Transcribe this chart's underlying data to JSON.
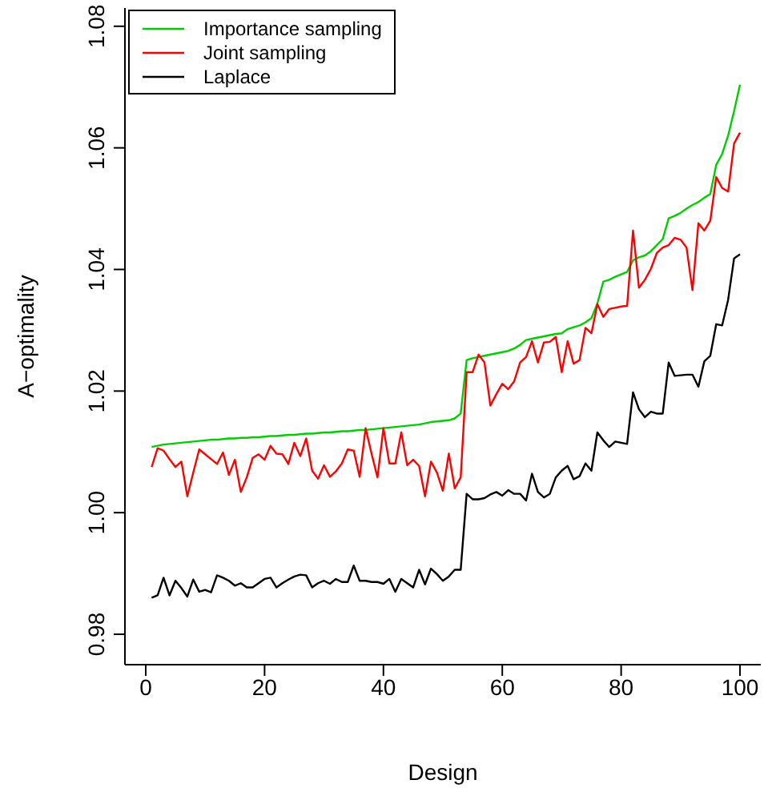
{
  "chart_data": {
    "type": "line",
    "xlabel": "Design",
    "ylabel": "A−optimality",
    "x": [
      1,
      2,
      3,
      4,
      5,
      6,
      7,
      8,
      9,
      10,
      11,
      12,
      13,
      14,
      15,
      16,
      17,
      18,
      19,
      20,
      21,
      22,
      23,
      24,
      25,
      26,
      27,
      28,
      29,
      30,
      31,
      32,
      33,
      34,
      35,
      36,
      37,
      38,
      39,
      40,
      41,
      42,
      43,
      44,
      45,
      46,
      47,
      48,
      49,
      50,
      51,
      52,
      53,
      54,
      55,
      56,
      57,
      58,
      59,
      60,
      61,
      62,
      63,
      64,
      65,
      66,
      67,
      68,
      69,
      70,
      71,
      72,
      73,
      74,
      75,
      76,
      77,
      78,
      79,
      80,
      81,
      82,
      83,
      84,
      85,
      86,
      87,
      88,
      89,
      90,
      91,
      92,
      93,
      94,
      95,
      96,
      97,
      98,
      99,
      100
    ],
    "series": [
      {
        "name": "Importance sampling",
        "color": "#00cd00",
        "values": [
          1.0108,
          1.011,
          1.0112,
          1.0113,
          1.0114,
          1.0115,
          1.0116,
          1.0117,
          1.0118,
          1.0119,
          1.012,
          1.012,
          1.0121,
          1.0122,
          1.0122,
          1.0123,
          1.0123,
          1.0124,
          1.0124,
          1.0125,
          1.0126,
          1.0126,
          1.0127,
          1.0128,
          1.0128,
          1.0129,
          1.013,
          1.013,
          1.0131,
          1.0132,
          1.0132,
          1.0133,
          1.0134,
          1.0134,
          1.0135,
          1.0136,
          1.0136,
          1.0137,
          1.0138,
          1.0139,
          1.014,
          1.0141,
          1.0142,
          1.0143,
          1.0144,
          1.0145,
          1.0147,
          1.0149,
          1.015,
          1.0151,
          1.0152,
          1.0155,
          1.0163,
          1.0251,
          1.0254,
          1.0256,
          1.0258,
          1.026,
          1.0262,
          1.0264,
          1.0266,
          1.027,
          1.0276,
          1.0284,
          1.0286,
          1.0288,
          1.029,
          1.0292,
          1.0294,
          1.0295,
          1.0302,
          1.0305,
          1.0308,
          1.0313,
          1.032,
          1.0344,
          1.038,
          1.0383,
          1.0388,
          1.0392,
          1.0396,
          1.0415,
          1.042,
          1.0423,
          1.043,
          1.044,
          1.045,
          1.0484,
          1.0488,
          1.0493,
          1.05,
          1.0506,
          1.0511,
          1.0518,
          1.0524,
          1.0572,
          1.059,
          1.062,
          1.066,
          1.0704
        ]
      },
      {
        "name": "Joint sampling",
        "color": "#ff0000",
        "values": [
          1.0075,
          1.0106,
          1.0102,
          1.0088,
          1.0075,
          1.0084,
          1.0027,
          1.0066,
          1.0104,
          1.0096,
          1.0088,
          1.008,
          1.0099,
          1.0062,
          1.0087,
          1.0034,
          1.0058,
          1.009,
          1.0096,
          1.0087,
          1.011,
          1.0097,
          1.0096,
          1.008,
          1.0115,
          1.0093,
          1.0122,
          1.0069,
          1.0056,
          1.0078,
          1.0059,
          1.0068,
          1.0081,
          1.0104,
          1.0102,
          1.0059,
          1.0139,
          1.0097,
          1.0058,
          1.0139,
          1.0081,
          1.0081,
          1.0132,
          1.0078,
          1.0087,
          1.0077,
          1.0027,
          1.0084,
          1.0066,
          1.0036,
          1.0097,
          1.004,
          1.0058,
          1.0231,
          1.0231,
          1.026,
          1.0247,
          1.0176,
          1.0195,
          1.0212,
          1.0203,
          1.0216,
          1.0247,
          1.0256,
          1.0282,
          1.0247,
          1.028,
          1.0281,
          1.0289,
          1.0231,
          1.0282,
          1.0245,
          1.0251,
          1.0304,
          1.0295,
          1.0343,
          1.0322,
          1.0335,
          1.0337,
          1.0339,
          1.034,
          1.0464,
          1.037,
          1.0383,
          1.0401,
          1.0427,
          1.0436,
          1.044,
          1.0452,
          1.0449,
          1.0436,
          1.0366,
          1.0476,
          1.0464,
          1.048,
          1.0552,
          1.0534,
          1.0528,
          1.0607,
          1.0625
        ]
      },
      {
        "name": "Laplace",
        "color": "#000000",
        "values": [
          0.986,
          0.9864,
          0.9893,
          0.9864,
          0.9888,
          0.9876,
          0.9862,
          0.989,
          0.987,
          0.9873,
          0.9869,
          0.9897,
          0.9893,
          0.9888,
          0.988,
          0.9884,
          0.9877,
          0.9877,
          0.9884,
          0.9891,
          0.9893,
          0.9877,
          0.9884,
          0.989,
          0.9895,
          0.9898,
          0.9897,
          0.9877,
          0.9884,
          0.9888,
          0.9883,
          0.9891,
          0.9886,
          0.9886,
          0.9913,
          0.9888,
          0.9888,
          0.9886,
          0.9886,
          0.9883,
          0.9891,
          0.987,
          0.9891,
          0.9884,
          0.9877,
          0.9906,
          0.9882,
          0.9908,
          0.9899,
          0.9888,
          0.9895,
          0.9906,
          0.9906,
          1.0031,
          1.0022,
          1.0022,
          1.0024,
          1.003,
          1.0034,
          1.0028,
          1.0037,
          1.0031,
          1.0031,
          1.002,
          1.0064,
          1.0034,
          1.0025,
          1.0031,
          1.0058,
          1.0069,
          1.0077,
          1.0055,
          1.006,
          1.0081,
          1.0069,
          1.0132,
          1.0119,
          1.0108,
          1.0117,
          1.0115,
          1.0113,
          1.0198,
          1.017,
          1.0157,
          1.0166,
          1.0163,
          1.0163,
          1.0247,
          1.0225,
          1.0226,
          1.0227,
          1.0227,
          1.0207,
          1.0249,
          1.0258,
          1.031,
          1.0308,
          1.035,
          1.0418,
          1.0425
        ]
      }
    ],
    "xlim": [
      -3.5,
      103.5
    ],
    "ylim": [
      0.975,
      1.083
    ],
    "xticks": [
      0,
      20,
      40,
      60,
      80,
      100
    ],
    "yticks": [
      {
        "value": 0.98,
        "label": "0.98"
      },
      {
        "value": 1.0,
        "label": "1.00"
      },
      {
        "value": 1.02,
        "label": "1.02"
      },
      {
        "value": 1.04,
        "label": "1.04"
      },
      {
        "value": 1.06,
        "label": "1.06"
      },
      {
        "value": 1.08,
        "label": "1.08"
      }
    ],
    "legend": "top left",
    "grid": false,
    "marker": "none",
    "line_style": "solid"
  }
}
